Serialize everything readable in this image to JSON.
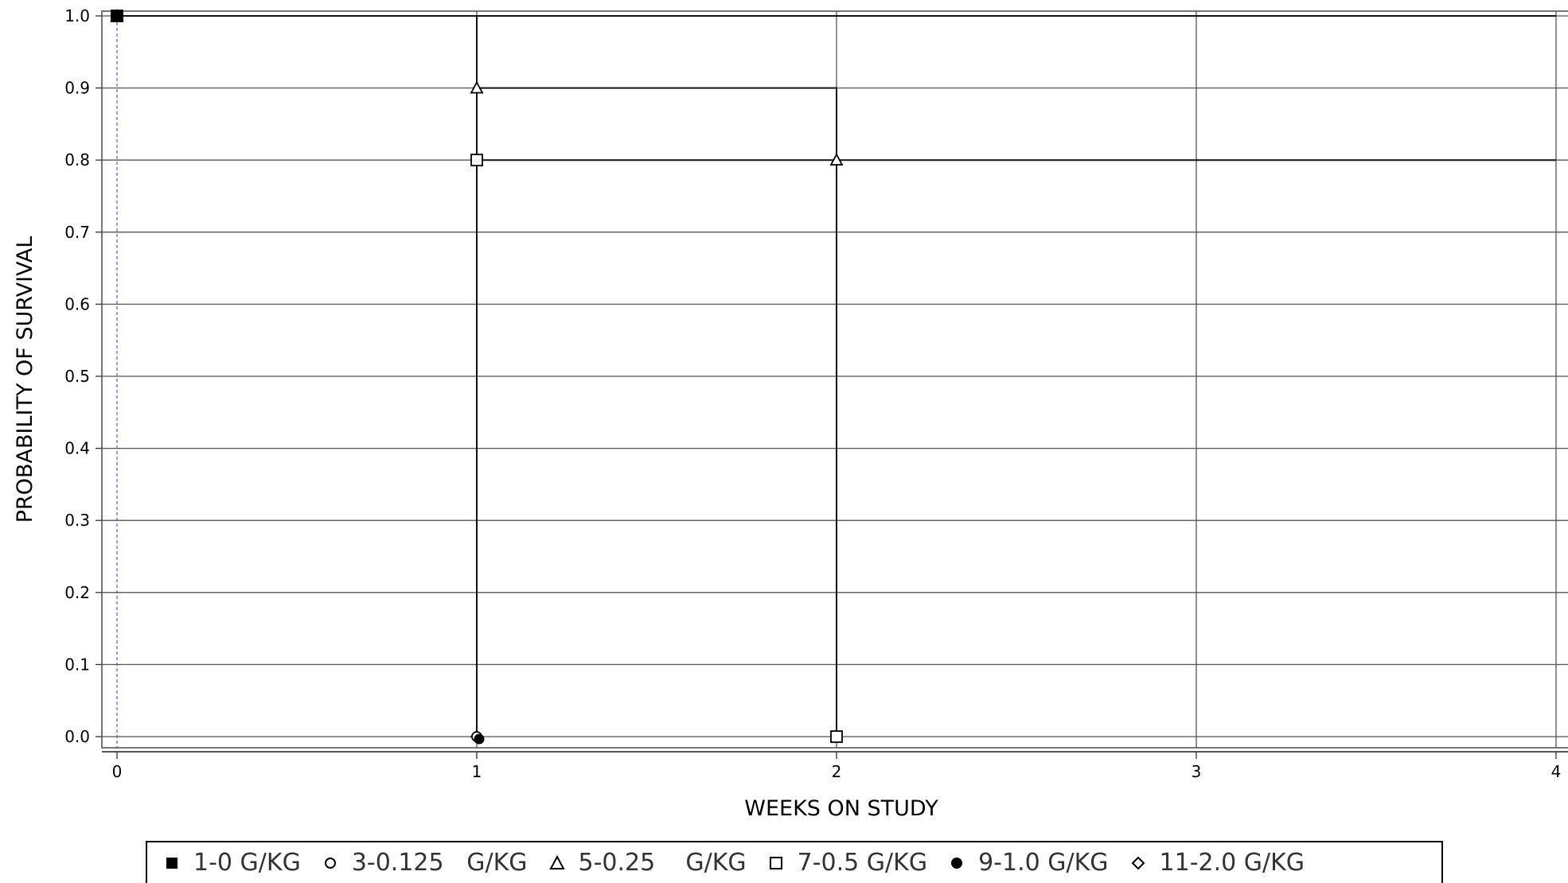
{
  "chart_data": {
    "type": "line",
    "step": true,
    "title": "",
    "xlabel": "WEEKS ON STUDY",
    "ylabel": "PROBABILITY OF SURVIVAL",
    "xlim": [
      0,
      4
    ],
    "ylim": [
      0,
      1.0
    ],
    "xticks": [
      "0",
      "1",
      "2",
      "3",
      "4"
    ],
    "yticks": [
      "0.0",
      "0.1",
      "0.2",
      "0.3",
      "0.4",
      "0.5",
      "0.6",
      "0.7",
      "0.8",
      "0.9",
      "1.0"
    ],
    "grid": true,
    "legend_position": "bottom",
    "series": [
      {
        "name": "1-0 G/KG",
        "marker": "filled-square",
        "x": [
          0,
          4
        ],
        "y": [
          1.0,
          1.0
        ],
        "censor": [
          0
        ]
      },
      {
        "name": "3-0.125   G/KG",
        "marker": "open-circle",
        "x": [
          0,
          1
        ],
        "y": [
          1.0,
          0.0
        ],
        "censor": [
          0,
          1
        ]
      },
      {
        "name": "5-0.25    G/KG",
        "marker": "open-triangle",
        "x": [
          0,
          1,
          2,
          4
        ],
        "y": [
          1.0,
          0.9,
          0.8,
          0.8
        ],
        "censor": [
          0,
          1,
          2
        ]
      },
      {
        "name": "7-0.5 G/KG",
        "marker": "open-square",
        "x": [
          0,
          1,
          2
        ],
        "y": [
          1.0,
          0.8,
          0.0
        ],
        "censor": [
          0,
          1,
          2
        ]
      },
      {
        "name": "9-1.0 G/KG",
        "marker": "filled-circle",
        "x": [
          0,
          1
        ],
        "y": [
          1.0,
          0.0
        ],
        "censor": [
          0,
          1
        ]
      },
      {
        "name": "11-2.0 G/KG",
        "marker": "open-diamond",
        "x": [
          0,
          1
        ],
        "y": [
          1.0,
          0.0
        ],
        "censor": [
          0,
          1
        ]
      }
    ]
  }
}
